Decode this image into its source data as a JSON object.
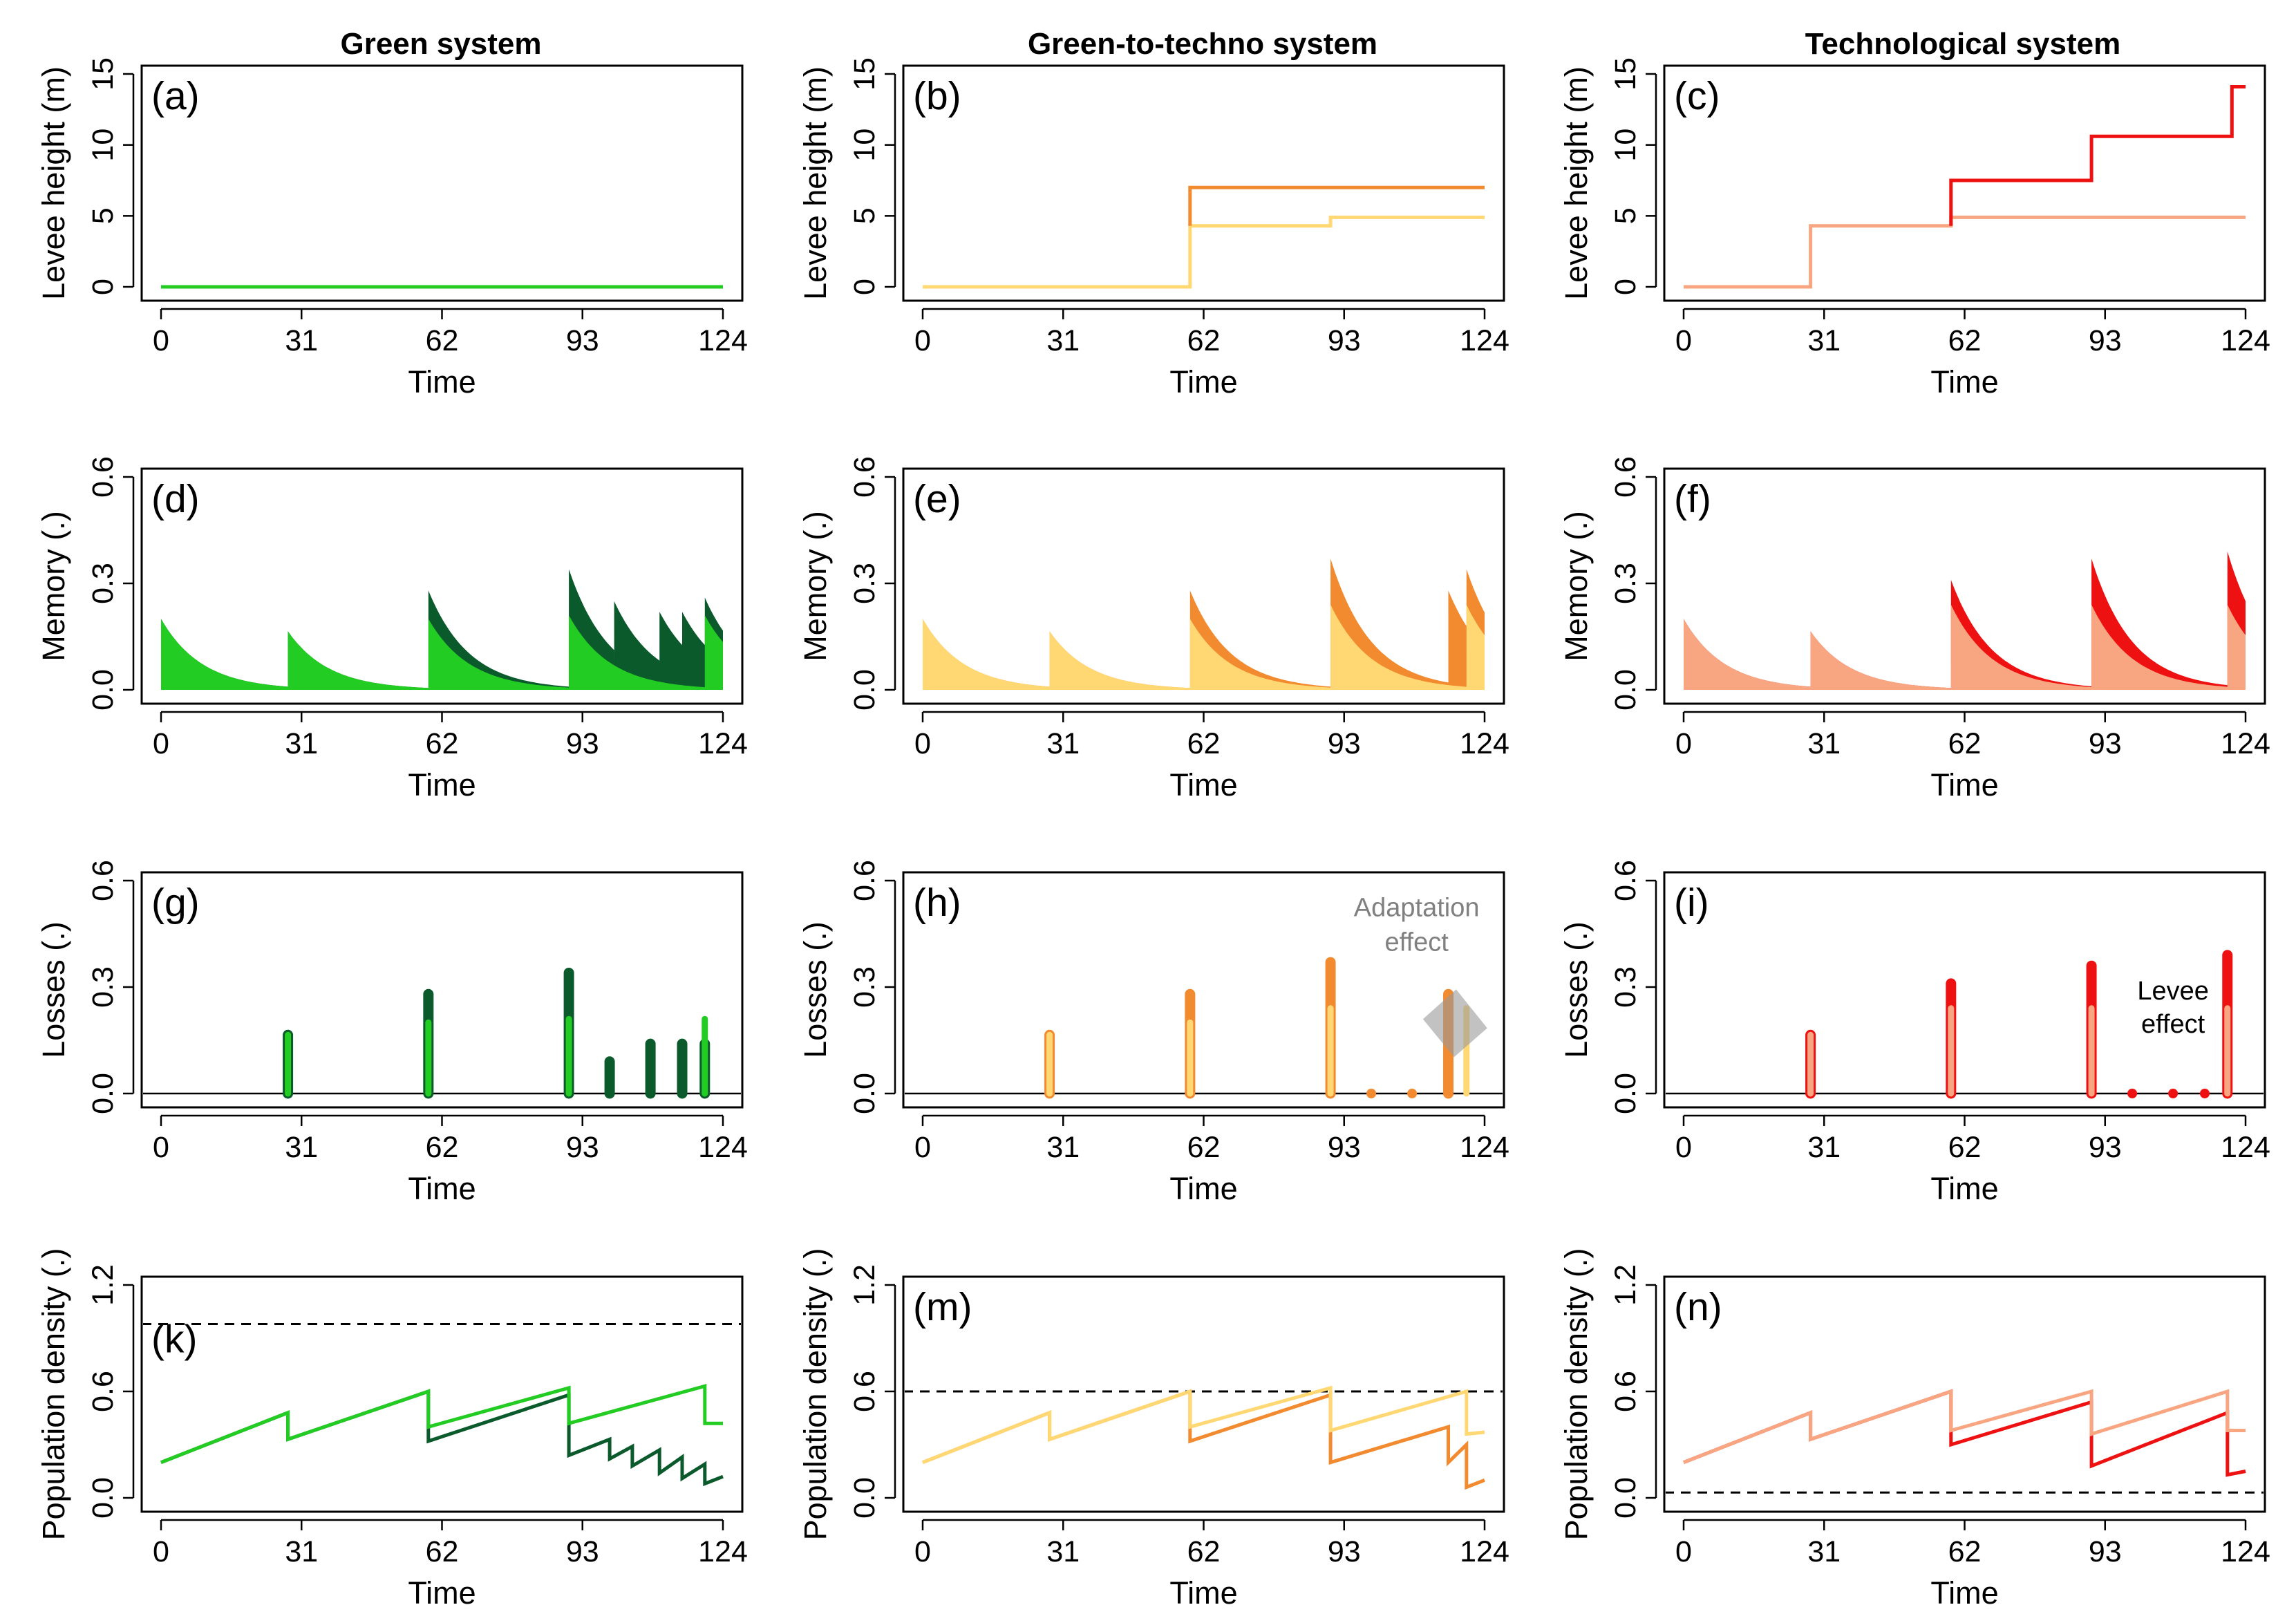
{
  "colors": {
    "green_light": "#22cc22",
    "green_dark": "#0a5a2c",
    "yellow": "#ffd873",
    "orange": "#f28a30",
    "salmon": "#f8a582",
    "red": "#ee1111",
    "annotation_gray": "#808080",
    "dashed": "#000000"
  },
  "columns": [
    "Green system",
    "Green-to-techno system",
    "Technological system"
  ],
  "rows": [
    {
      "key": "levee",
      "ylabel": "Levee height (m)",
      "ylim": [
        0,
        15
      ],
      "yticks": [
        "0",
        "5",
        "10",
        "15"
      ]
    },
    {
      "key": "memory",
      "ylabel": "Memory (.)",
      "ylim": [
        0,
        0.6
      ],
      "yticks": [
        "0.0",
        "0.3",
        "0.6"
      ]
    },
    {
      "key": "losses",
      "ylabel": "Losses (.)",
      "ylim": [
        0,
        0.6
      ],
      "yticks": [
        "0.0",
        "0.3",
        "0.6"
      ]
    },
    {
      "key": "population",
      "ylabel": "Population density (.)",
      "ylim": [
        0,
        1.2
      ],
      "yticks": [
        "0.0",
        "0.6",
        "1.2"
      ]
    }
  ],
  "xlabel": "Time",
  "xticks": [
    "0",
    "31",
    "62",
    "93",
    "124"
  ],
  "panels": [
    "(a)",
    "(b)",
    "(c)",
    "(d)",
    "(e)",
    "(f)",
    "(g)",
    "(h)",
    "(i)",
    "(k)",
    "(m)",
    "(n)"
  ],
  "annotations": {
    "adaptation": [
      "Adaptation",
      "effect"
    ],
    "levee": [
      "Levee",
      "effect"
    ]
  },
  "chart_data": [
    {
      "panel": "(a)",
      "type": "line",
      "title": "Green system",
      "xlabel": "Time",
      "ylabel": "Levee height (m)",
      "xlim": [
        0,
        124
      ],
      "ylim": [
        0,
        15
      ],
      "series": [
        {
          "name": "levee",
          "color": "#22cc22",
          "x": [
            0,
            124
          ],
          "y": [
            0,
            0
          ]
        }
      ]
    },
    {
      "panel": "(b)",
      "type": "line",
      "title": "Green-to-techno system",
      "xlabel": "Time",
      "ylabel": "Levee height (m)",
      "xlim": [
        0,
        124
      ],
      "ylim": [
        0,
        15
      ],
      "series": [
        {
          "name": "levee (low scenario)",
          "color": "#ffd873",
          "x": [
            0,
            59,
            59,
            90,
            90,
            124
          ],
          "y": [
            0,
            0,
            4.3,
            4.3,
            4.9,
            4.9
          ]
        },
        {
          "name": "levee (high scenario)",
          "color": "#f28a30",
          "x": [
            59,
            59,
            124
          ],
          "y": [
            4.3,
            7,
            7
          ]
        }
      ]
    },
    {
      "panel": "(c)",
      "type": "line",
      "title": "Technological system",
      "xlabel": "Time",
      "ylabel": "Levee height (m)",
      "xlim": [
        0,
        124
      ],
      "ylim": [
        0,
        15
      ],
      "series": [
        {
          "name": "levee (low scenario)",
          "color": "#f8a582",
          "x": [
            0,
            28,
            28,
            59,
            59,
            124
          ],
          "y": [
            0,
            0,
            4.3,
            4.3,
            4.9,
            4.9
          ]
        },
        {
          "name": "levee (high scenario)",
          "color": "#ee1111",
          "x": [
            59,
            59,
            90,
            90,
            121,
            121,
            124
          ],
          "y": [
            4.3,
            7.5,
            7.5,
            10.6,
            10.6,
            14.1,
            14.1
          ]
        }
      ]
    },
    {
      "panel": "(d)",
      "type": "area",
      "xlabel": "Time",
      "ylabel": "Memory (.)",
      "xlim": [
        0,
        124
      ],
      "ylim": [
        0,
        0.6
      ],
      "series": [
        {
          "name": "memory (high)",
          "color": "#0a5a2c",
          "events": [
            [
              0,
              0.2
            ],
            [
              28,
              0.165
            ],
            [
              59,
              0.28
            ],
            [
              90,
              0.34
            ],
            [
              100,
              0.25
            ],
            [
              110,
              0.22
            ],
            [
              115,
              0.22
            ],
            [
              120,
              0.26
            ]
          ]
        },
        {
          "name": "memory (low)",
          "color": "#22cc22",
          "events": [
            [
              0,
              0.2
            ],
            [
              28,
              0.165
            ],
            [
              59,
              0.2
            ],
            [
              90,
              0.21
            ],
            [
              120,
              0.21
            ]
          ]
        }
      ]
    },
    {
      "panel": "(e)",
      "type": "area",
      "xlabel": "Time",
      "ylabel": "Memory (.)",
      "xlim": [
        0,
        124
      ],
      "ylim": [
        0,
        0.6
      ],
      "series": [
        {
          "name": "memory (high)",
          "color": "#f28a30",
          "events": [
            [
              0,
              0.2
            ],
            [
              28,
              0.165
            ],
            [
              59,
              0.28
            ],
            [
              90,
              0.37
            ],
            [
              116,
              0.28
            ],
            [
              120,
              0.34
            ]
          ]
        },
        {
          "name": "memory (low)",
          "color": "#ffd873",
          "events": [
            [
              0,
              0.2
            ],
            [
              28,
              0.165
            ],
            [
              59,
              0.2
            ],
            [
              90,
              0.24
            ],
            [
              120,
              0.24
            ]
          ]
        }
      ]
    },
    {
      "panel": "(f)",
      "type": "area",
      "xlabel": "Time",
      "ylabel": "Memory (.)",
      "xlim": [
        0,
        124
      ],
      "ylim": [
        0,
        0.6
      ],
      "series": [
        {
          "name": "memory (high)",
          "color": "#ee1111",
          "events": [
            [
              0,
              0.2
            ],
            [
              28,
              0.165
            ],
            [
              59,
              0.31
            ],
            [
              90,
              0.37
            ],
            [
              120,
              0.39
            ]
          ]
        },
        {
          "name": "memory (low)",
          "color": "#f8a582",
          "events": [
            [
              0,
              0.2
            ],
            [
              28,
              0.165
            ],
            [
              59,
              0.24
            ],
            [
              90,
              0.24
            ],
            [
              120,
              0.24
            ]
          ]
        }
      ]
    },
    {
      "panel": "(g)",
      "type": "bar",
      "xlabel": "Time",
      "ylabel": "Losses (.)",
      "xlim": [
        0,
        124
      ],
      "ylim": [
        0,
        0.6
      ],
      "series": [
        {
          "name": "losses (high)",
          "color": "#0a5a2c",
          "x": [
            28,
            59,
            90,
            99,
            108,
            115,
            120
          ],
          "y": [
            0.165,
            0.28,
            0.34,
            0.09,
            0.14,
            0.14,
            0.14
          ]
        },
        {
          "name": "losses (low)",
          "color": "#22cc22",
          "x": [
            28,
            59,
            90,
            120
          ],
          "y": [
            0.165,
            0.2,
            0.21,
            0.21
          ]
        }
      ]
    },
    {
      "panel": "(h)",
      "type": "bar",
      "xlabel": "Time",
      "ylabel": "Losses (.)",
      "xlim": [
        0,
        124
      ],
      "ylim": [
        0,
        0.6
      ],
      "series": [
        {
          "name": "losses (high)",
          "color": "#f28a30",
          "x": [
            28,
            59,
            90,
            99,
            108,
            116
          ],
          "y": [
            0.165,
            0.28,
            0.37,
            0,
            0,
            0.28
          ]
        },
        {
          "name": "losses (low)",
          "color": "#ffd873",
          "x": [
            28,
            59,
            90,
            120
          ],
          "y": [
            0.165,
            0.2,
            0.24,
            0.24
          ]
        }
      ]
    },
    {
      "panel": "(i)",
      "type": "bar",
      "xlabel": "Time",
      "ylabel": "Losses (.)",
      "xlim": [
        0,
        124
      ],
      "ylim": [
        0,
        0.6
      ],
      "series": [
        {
          "name": "losses (high)",
          "color": "#ee1111",
          "x": [
            28,
            59,
            90,
            99,
            108,
            115,
            120
          ],
          "y": [
            0.165,
            0.31,
            0.36,
            0,
            0,
            0,
            0.39
          ]
        },
        {
          "name": "losses (low)",
          "color": "#f8a582",
          "x": [
            28,
            59,
            90,
            120
          ],
          "y": [
            0.165,
            0.24,
            0.24,
            0.24
          ]
        }
      ]
    },
    {
      "panel": "(k)",
      "type": "line",
      "xlabel": "Time",
      "ylabel": "Population density (.)",
      "xlim": [
        0,
        124
      ],
      "ylim": [
        0,
        1.2
      ],
      "hline": 0.98,
      "series": [
        {
          "name": "population (high)",
          "color": "#0a5a2c",
          "x": [
            0,
            28,
            28,
            59,
            59,
            90,
            90,
            99,
            99,
            104,
            104,
            110,
            110,
            115,
            115,
            120,
            120,
            124
          ],
          "y": [
            0.2,
            0.48,
            0.33,
            0.6,
            0.32,
            0.58,
            0.24,
            0.33,
            0.22,
            0.29,
            0.18,
            0.27,
            0.14,
            0.23,
            0.11,
            0.19,
            0.08,
            0.12
          ]
        },
        {
          "name": "population (low)",
          "color": "#22cc22",
          "x": [
            0,
            28,
            28,
            59,
            59,
            90,
            90,
            120,
            120,
            124
          ],
          "y": [
            0.2,
            0.48,
            0.33,
            0.6,
            0.4,
            0.62,
            0.42,
            0.63,
            0.42,
            0.42
          ]
        }
      ]
    },
    {
      "panel": "(m)",
      "type": "line",
      "xlabel": "Time",
      "ylabel": "Population density (.)",
      "xlim": [
        0,
        124
      ],
      "ylim": [
        0,
        1.2
      ],
      "hline": 0.6,
      "series": [
        {
          "name": "population (high)",
          "color": "#f28a30",
          "x": [
            0,
            28,
            28,
            59,
            59,
            90,
            90,
            116,
            116,
            120,
            120,
            124
          ],
          "y": [
            0.2,
            0.48,
            0.33,
            0.6,
            0.32,
            0.58,
            0.2,
            0.4,
            0.2,
            0.3,
            0.06,
            0.1
          ]
        },
        {
          "name": "population (low)",
          "color": "#ffd873",
          "x": [
            0,
            28,
            28,
            59,
            59,
            90,
            90,
            120,
            120,
            124
          ],
          "y": [
            0.2,
            0.48,
            0.33,
            0.6,
            0.4,
            0.62,
            0.38,
            0.6,
            0.36,
            0.37
          ]
        }
      ]
    },
    {
      "panel": "(n)",
      "type": "line",
      "xlabel": "Time",
      "ylabel": "Population density (.)",
      "xlim": [
        0,
        124
      ],
      "ylim": [
        0,
        1.2
      ],
      "hline": 0.03,
      "series": [
        {
          "name": "population (high)",
          "color": "#ee1111",
          "x": [
            0,
            28,
            28,
            59,
            59,
            90,
            90,
            120,
            120,
            124
          ],
          "y": [
            0.2,
            0.48,
            0.33,
            0.6,
            0.3,
            0.54,
            0.18,
            0.48,
            0.13,
            0.15
          ]
        },
        {
          "name": "population (low)",
          "color": "#f8a582",
          "x": [
            0,
            28,
            28,
            59,
            59,
            90,
            90,
            120,
            120,
            124
          ],
          "y": [
            0.2,
            0.48,
            0.33,
            0.6,
            0.38,
            0.6,
            0.36,
            0.6,
            0.38,
            0.38
          ]
        }
      ]
    }
  ]
}
